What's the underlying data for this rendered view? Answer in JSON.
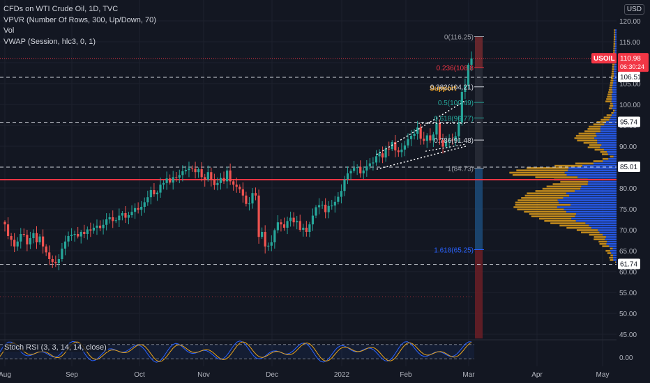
{
  "legend": {
    "title": "CFDs on WTI Crude Oil, 1D, TVC",
    "vpvr": "VPVR (Number Of Rows, 300, Up/Down, 70)",
    "vol": "Vol",
    "vwap": "VWAP (Session, hlc3, 0, 1)"
  },
  "currency": "USD",
  "rsi_label": "Stoch RSI (3, 3, 14, 14, close)",
  "colors": {
    "background": "#131722",
    "up": "#26a69a",
    "down": "#ef5350",
    "support_line": "#f23645",
    "price_badge": "#f23645",
    "fib_top_zone": "#7a2a2f",
    "fib_bottom_zone": "#6b1f26",
    "fib_mid_zone": "#1c4b79",
    "vp_up": "#2962ff",
    "vp_down": "#e9a41b",
    "stoch_k": "#2962ff",
    "stoch_d": "#e9a41b",
    "support_text": "#f5a623"
  },
  "chart_data": {
    "type": "candlestick",
    "symbol": "USOIL",
    "interval": "1D",
    "x_ticks": [
      "Aug",
      "Sep",
      "Oct",
      "Nov",
      "Dec",
      "2022",
      "Feb",
      "Mar",
      "Apr",
      "May"
    ],
    "y_ticks": [
      45,
      50,
      55,
      60,
      65,
      70,
      75,
      80,
      85,
      90,
      95,
      100,
      105,
      110,
      115,
      120
    ],
    "y_tick_labels": [
      "45.00",
      "50.00",
      "55.00",
      "60.00",
      "65.00",
      "70.00",
      "75.00",
      "80.00",
      "85.00",
      "90.00",
      "95.00",
      "100.00",
      "105.00",
      "110.00",
      "115.00",
      "120.00"
    ],
    "ylim": [
      43.5,
      122
    ],
    "last_price": {
      "label": "USOIL",
      "value": "110.98",
      "countdown": "06:30:24"
    },
    "horizontal_levels": [
      {
        "label": "106.51",
        "value": 106.51
      },
      {
        "label": "95.74",
        "value": 95.74
      },
      {
        "label": "85.01",
        "value": 85.01
      },
      {
        "label": "61.74",
        "value": 61.74
      }
    ],
    "support_level": 82.0,
    "annotation": "Support",
    "fibonacci": [
      {
        "label": "0(116.25)",
        "value": 116.25
      },
      {
        "label": "0.236(108.8",
        "value": 108.8
      },
      {
        "label": "0.382(104.21)",
        "value": 104.21
      },
      {
        "label": "0.5(100.49)",
        "value": 100.49
      },
      {
        "label": "0.618(96.77)",
        "value": 96.77
      },
      {
        "label": "0.786(91.48)",
        "value": 91.48
      },
      {
        "label": "1(84.73)",
        "value": 84.73
      },
      {
        "label": "1.618(65.25)",
        "value": 65.25
      }
    ],
    "closes": [
      71.3,
      68.5,
      67.6,
      66.0,
      67.2,
      69.0,
      68.8,
      66.5,
      68.0,
      69.2,
      67.0,
      68.4,
      66.0,
      64.6,
      63.0,
      62.3,
      62.0,
      63.0,
      65.5,
      67.2,
      68.5,
      68.8,
      69.0,
      68.4,
      69.5,
      69.0,
      70.1,
      69.8,
      70.5,
      71.0,
      70.4,
      71.2,
      72.5,
      73.0,
      72.1,
      72.3,
      73.4,
      74.0,
      72.9,
      73.5,
      74.3,
      75.2,
      74.8,
      75.5,
      76.6,
      77.8,
      79.5,
      78.5,
      78.9,
      80.8,
      81.2,
      82.3,
      81.3,
      82.6,
      82.5,
      83.1,
      84.0,
      84.3,
      84.7,
      84.6,
      83.8,
      84.5,
      82.6,
      82.0,
      83.8,
      82.0,
      80.7,
      81.2,
      82.4,
      81.6,
      84.2,
      81.6,
      80.8,
      80.3,
      79.7,
      78.2,
      76.2,
      76.3,
      78.8,
      78.2,
      68.3,
      69.5,
      66.0,
      66.2,
      67.0,
      69.9,
      71.8,
      71.3,
      70.5,
      72.1,
      72.9,
      71.8,
      72.1,
      70.0,
      70.5,
      69.5,
      71.3,
      73.4,
      75.4,
      75.9,
      76.0,
      74.2,
      75.7,
      75.8,
      76.7,
      77.9,
      79.3,
      82.1,
      83.5,
      84.1,
      84.8,
      85.0,
      83.5,
      84.2,
      85.2,
      85.9,
      86.1,
      87.6,
      88.3,
      87.3,
      89.4,
      89.3,
      91.0,
      89.0,
      88.6,
      89.2,
      90.2,
      91.7,
      92.5,
      93.0,
      94.5,
      91.8,
      91.3,
      92.6,
      91.4,
      92.8,
      95.5,
      91.5,
      89.9,
      91.2,
      91.6,
      91.4,
      92.4,
      95.7,
      103.0,
      104.5,
      109.5,
      111.0
    ],
    "stoch_rsi_levels": [
      80,
      20
    ]
  }
}
